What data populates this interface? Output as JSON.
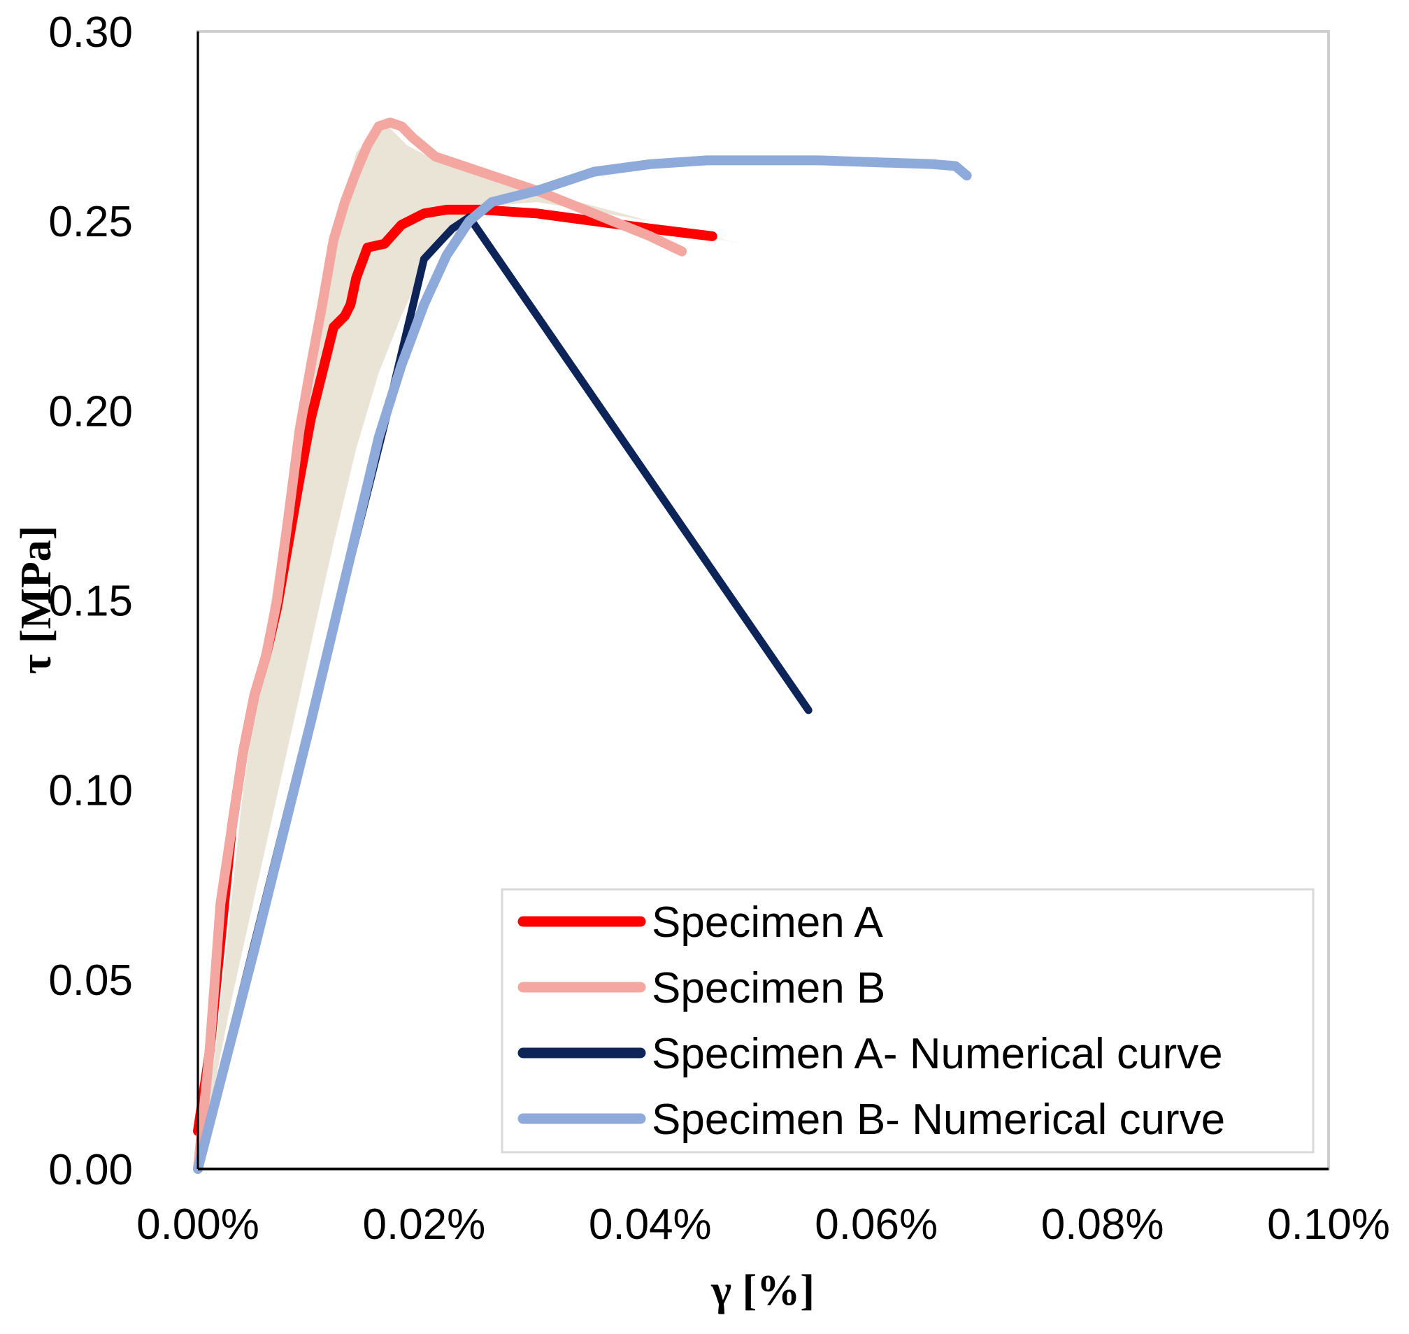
{
  "chart_data": {
    "type": "line",
    "title": "",
    "xlabel": "γ [%]",
    "ylabel": "τ [MPa]",
    "xlim": [
      0,
      0.1
    ],
    "ylim": [
      0,
      0.3
    ],
    "x_ticks": [
      "0.00%",
      "0.02%",
      "0.04%",
      "0.06%",
      "0.08%",
      "0.10%"
    ],
    "y_ticks": [
      "0.00",
      "0.05",
      "0.10",
      "0.15",
      "0.20",
      "0.25",
      "0.30"
    ],
    "grid": false,
    "legend_position": "bottom-right",
    "shaded_band": {
      "color": "#e9e4d6",
      "description": "envelope between experimental and numerical curves",
      "upper": [
        [
          0,
          0
        ],
        [
          0.0015,
          0.03
        ],
        [
          0.004,
          0.1
        ],
        [
          0.006,
          0.14
        ],
        [
          0.008,
          0.18
        ],
        [
          0.01,
          0.215
        ],
        [
          0.012,
          0.245
        ],
        [
          0.014,
          0.268
        ],
        [
          0.0165,
          0.276
        ],
        [
          0.0185,
          0.27
        ],
        [
          0.021,
          0.266
        ],
        [
          0.025,
          0.262
        ],
        [
          0.03,
          0.258
        ],
        [
          0.035,
          0.254
        ],
        [
          0.04,
          0.25
        ],
        [
          0.045,
          0.246
        ],
        [
          0.048,
          0.244
        ]
      ],
      "lower": [
        [
          0.048,
          0.244
        ],
        [
          0.04,
          0.25
        ],
        [
          0.03,
          0.255
        ],
        [
          0.026,
          0.254
        ],
        [
          0.024,
          0.25
        ],
        [
          0.022,
          0.245
        ],
        [
          0.02,
          0.238
        ],
        [
          0.018,
          0.225
        ],
        [
          0.016,
          0.21
        ],
        [
          0.014,
          0.19
        ],
        [
          0.012,
          0.165
        ],
        [
          0.009,
          0.125
        ],
        [
          0.006,
          0.085
        ],
        [
          0.003,
          0.045
        ],
        [
          0,
          0
        ]
      ]
    },
    "series": [
      {
        "name": "Specimen A",
        "color": "#ff0000",
        "points": [
          [
            0,
            0.01
          ],
          [
            0.001,
            0.03
          ],
          [
            0.002,
            0.06
          ],
          [
            0.003,
            0.09
          ],
          [
            0.004,
            0.11
          ],
          [
            0.005,
            0.125
          ],
          [
            0.006,
            0.135
          ],
          [
            0.007,
            0.148
          ],
          [
            0.008,
            0.165
          ],
          [
            0.009,
            0.182
          ],
          [
            0.01,
            0.198
          ],
          [
            0.011,
            0.21
          ],
          [
            0.012,
            0.222
          ],
          [
            0.013,
            0.225
          ],
          [
            0.0135,
            0.228
          ],
          [
            0.014,
            0.235
          ],
          [
            0.015,
            0.243
          ],
          [
            0.0165,
            0.244
          ],
          [
            0.018,
            0.249
          ],
          [
            0.02,
            0.252
          ],
          [
            0.022,
            0.253
          ],
          [
            0.025,
            0.253
          ],
          [
            0.03,
            0.252
          ],
          [
            0.035,
            0.25
          ],
          [
            0.04,
            0.248
          ],
          [
            0.0455,
            0.246
          ]
        ]
      },
      {
        "name": "Specimen B",
        "color": "#f4a7a0",
        "points": [
          [
            0,
            0
          ],
          [
            0.001,
            0.03
          ],
          [
            0.002,
            0.07
          ],
          [
            0.003,
            0.09
          ],
          [
            0.004,
            0.11
          ],
          [
            0.005,
            0.125
          ],
          [
            0.006,
            0.135
          ],
          [
            0.007,
            0.15
          ],
          [
            0.008,
            0.172
          ],
          [
            0.009,
            0.195
          ],
          [
            0.01,
            0.212
          ],
          [
            0.011,
            0.228
          ],
          [
            0.012,
            0.245
          ],
          [
            0.013,
            0.255
          ],
          [
            0.014,
            0.263
          ],
          [
            0.015,
            0.27
          ],
          [
            0.016,
            0.275
          ],
          [
            0.017,
            0.276
          ],
          [
            0.018,
            0.275
          ],
          [
            0.019,
            0.272
          ],
          [
            0.021,
            0.267
          ],
          [
            0.023,
            0.265
          ],
          [
            0.026,
            0.262
          ],
          [
            0.03,
            0.258
          ],
          [
            0.035,
            0.252
          ],
          [
            0.04,
            0.246
          ],
          [
            0.0428,
            0.242
          ]
        ]
      },
      {
        "name": "Specimen A- Numerical curve",
        "color": "#0d2459",
        "points": [
          [
            0,
            0
          ],
          [
            0.0168,
            0.2
          ],
          [
            0.02,
            0.24
          ],
          [
            0.0225,
            0.248
          ],
          [
            0.024,
            0.251
          ],
          [
            0.054,
            0.121
          ]
        ]
      },
      {
        "name": "Specimen B- Numerical curve",
        "color": "#8eaadb",
        "points": [
          [
            0,
            0
          ],
          [
            0.005,
            0.058
          ],
          [
            0.01,
            0.118
          ],
          [
            0.014,
            0.168
          ],
          [
            0.016,
            0.193
          ],
          [
            0.018,
            0.212
          ],
          [
            0.02,
            0.228
          ],
          [
            0.022,
            0.241
          ],
          [
            0.024,
            0.25
          ],
          [
            0.026,
            0.255
          ],
          [
            0.03,
            0.258
          ],
          [
            0.035,
            0.263
          ],
          [
            0.04,
            0.265
          ],
          [
            0.045,
            0.266
          ],
          [
            0.05,
            0.266
          ],
          [
            0.055,
            0.266
          ],
          [
            0.06,
            0.2655
          ],
          [
            0.065,
            0.265
          ],
          [
            0.067,
            0.2645
          ],
          [
            0.068,
            0.262
          ]
        ]
      }
    ]
  }
}
